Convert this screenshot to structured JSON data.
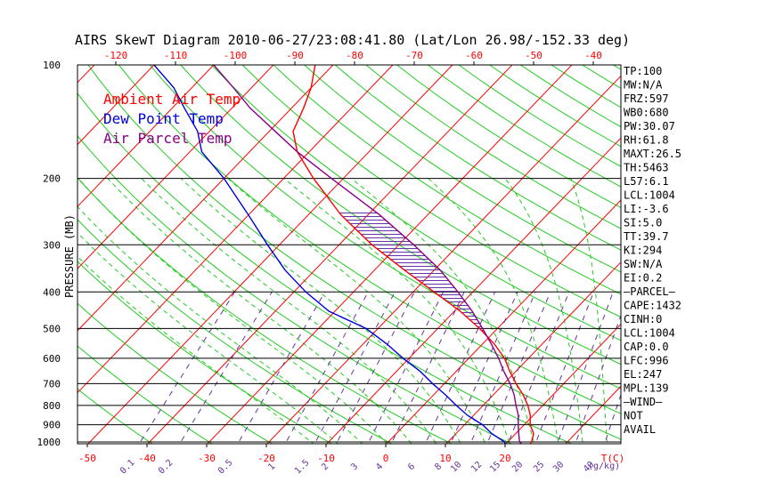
{
  "chart_data": {
    "type": "line",
    "title": "AIRS SkewT Diagram 2010-06-27/23:08:41.80 (Lat/Lon 26.98/-152.33 deg)",
    "ylabel": "PRESSURE (MB)",
    "xlabel_unit": "T(C)",
    "mixing_unit": "(g/kg)",
    "pressure_ticks": [
      100,
      200,
      300,
      400,
      500,
      600,
      700,
      800,
      900,
      1000
    ],
    "bottom_temp_ticks": [
      -50,
      -40,
      -30,
      -20,
      -10,
      0,
      10,
      20
    ],
    "top_temp_ticks": [
      -120,
      -110,
      -100,
      -90,
      -80,
      -70,
      -60,
      -50,
      -40
    ],
    "mixing_ratio_labels": [
      "0.1",
      "0.2",
      "0.5",
      "1",
      "1.5",
      "2",
      "3",
      "4",
      "6",
      "8",
      "10",
      "12",
      "15",
      "20",
      "25",
      "30",
      "40"
    ],
    "legend": [
      {
        "label": "Ambient Air Temp",
        "color": "#ff0000"
      },
      {
        "label": "Dew Point Temp",
        "color": "#0000dd"
      },
      {
        "label": "Air Parcel Temp",
        "color": "#880088"
      }
    ],
    "series": [
      {
        "name": "Ambient Air Temp",
        "color": "#ff0000",
        "points": [
          [
            1045,
            24.5
          ],
          [
            1000,
            24.0
          ],
          [
            950,
            23.0
          ],
          [
            900,
            21.0
          ],
          [
            850,
            19.5
          ],
          [
            800,
            17.5
          ],
          [
            750,
            15.0
          ],
          [
            700,
            12.0
          ],
          [
            650,
            9.0
          ],
          [
            600,
            6.0
          ],
          [
            550,
            2.0
          ],
          [
            500,
            -3.0
          ],
          [
            450,
            -9.0
          ],
          [
            400,
            -16.5
          ],
          [
            350,
            -25.0
          ],
          [
            300,
            -34.5
          ],
          [
            250,
            -44.5
          ],
          [
            200,
            -55.0
          ],
          [
            170,
            -62.0
          ],
          [
            150,
            -66.0
          ],
          [
            130,
            -68.0
          ],
          [
            115,
            -70.0
          ],
          [
            100,
            -73.0
          ]
        ]
      },
      {
        "name": "Dew Point Temp",
        "color": "#0000dd",
        "points": [
          [
            1045,
            21.0
          ],
          [
            1000,
            19.5
          ],
          [
            950,
            16.0
          ],
          [
            900,
            13.0
          ],
          [
            850,
            9.0
          ],
          [
            800,
            5.5
          ],
          [
            750,
            2.0
          ],
          [
            700,
            -2.0
          ],
          [
            650,
            -6.0
          ],
          [
            600,
            -11.0
          ],
          [
            550,
            -16.0
          ],
          [
            500,
            -22.0
          ],
          [
            450,
            -31.0
          ],
          [
            400,
            -38.0
          ],
          [
            350,
            -45.0
          ],
          [
            300,
            -52.0
          ],
          [
            250,
            -60.0
          ],
          [
            200,
            -70.0
          ],
          [
            170,
            -78.0
          ],
          [
            150,
            -82.0
          ],
          [
            130,
            -88.0
          ],
          [
            115,
            -93.0
          ],
          [
            100,
            -100.0
          ]
        ]
      },
      {
        "name": "Air Parcel Temp",
        "color": "#880088",
        "points": [
          [
            1045,
            24.5
          ],
          [
            1000,
            22.0
          ],
          [
            950,
            20.5
          ],
          [
            900,
            19.0
          ],
          [
            850,
            17.5
          ],
          [
            800,
            15.5
          ],
          [
            750,
            13.5
          ],
          [
            700,
            11.0
          ],
          [
            650,
            8.0
          ],
          [
            600,
            5.0
          ],
          [
            550,
            1.5
          ],
          [
            500,
            -2.5
          ],
          [
            450,
            -7.0
          ],
          [
            400,
            -12.5
          ],
          [
            350,
            -19.0
          ],
          [
            300,
            -27.5
          ],
          [
            250,
            -38.0
          ],
          [
            200,
            -52.0
          ],
          [
            170,
            -62.0
          ],
          [
            150,
            -69.0
          ],
          [
            130,
            -77.0
          ],
          [
            115,
            -83.0
          ],
          [
            100,
            -90.0
          ]
        ]
      }
    ],
    "indices": [
      "TP:100",
      "MW:N/A",
      "FRZ:597",
      "WB0:680",
      "PW:30.07",
      "RH:61.8",
      "MAXT:26.5",
      "TH:5463",
      "L57:6.1",
      "LCL:1004",
      "LI:-3.6",
      "SI:5.0",
      "TT:39.7",
      "KI:294",
      "SW:N/A",
      "EI:0.2",
      "—PARCEL—",
      "CAPE:1432",
      "CINH:0",
      "LCL:1004",
      "CAP:0.0",
      "LFC:996",
      "EL:247",
      "MPL:139",
      "—WIND—",
      "NOT",
      "AVAIL"
    ]
  }
}
